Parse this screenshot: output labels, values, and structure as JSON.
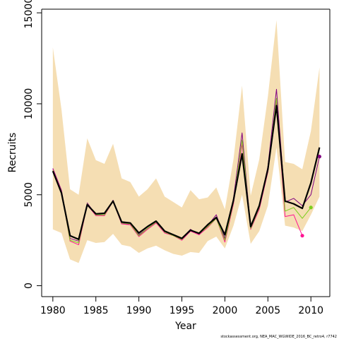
{
  "chart_data": {
    "type": "line",
    "title": "",
    "xlabel": "Year",
    "ylabel": "Recruits",
    "xlim": [
      1978.7,
      2012.2
    ],
    "ylim": [
      -600,
      15200
    ],
    "x_ticks": [
      1980,
      1985,
      1990,
      1995,
      2000,
      2005,
      2010
    ],
    "y_ticks": [
      0,
      5000,
      10000,
      15000
    ],
    "grid": false,
    "legend": "none",
    "band": {
      "color": "#f5deb3",
      "x": [
        1980,
        1981,
        1982,
        1983,
        1984,
        1985,
        1986,
        1987,
        1988,
        1989,
        1990,
        1991,
        1992,
        1993,
        1994,
        1995,
        1996,
        1997,
        1998,
        1999,
        2000,
        2001,
        2002,
        2003,
        2004,
        2005,
        2006,
        2007,
        2008,
        2009,
        2010,
        2011
      ],
      "upper": [
        13100,
        9700,
        5300,
        5000,
        8100,
        6900,
        6700,
        7800,
        5900,
        5700,
        4900,
        5300,
        5900,
        4900,
        4600,
        4300,
        5250,
        4750,
        4850,
        5400,
        4200,
        6950,
        11000,
        4950,
        6950,
        10400,
        14600,
        6800,
        6700,
        6400,
        8500,
        12000
      ],
      "lower": [
        3100,
        2900,
        1450,
        1250,
        2500,
        2350,
        2400,
        2850,
        2250,
        2150,
        1800,
        2050,
        2200,
        1950,
        1750,
        1650,
        1850,
        1800,
        2450,
        2700,
        2050,
        3300,
        5000,
        2300,
        3000,
        4400,
        7600,
        3300,
        3200,
        3000,
        3900,
        4900
      ]
    },
    "series": [
      {
        "color": "#000000",
        "width": 2.2,
        "x": [
          1980,
          1981,
          1982,
          1983,
          1984,
          1985,
          1986,
          1987,
          1988,
          1989,
          1990,
          1991,
          1992,
          1993,
          1994,
          1995,
          1996,
          1997,
          1998,
          1999,
          2000,
          2001,
          2002,
          2003,
          2004,
          2005,
          2006,
          2007,
          2008,
          2009,
          2010,
          2011
        ],
        "values": [
          6300,
          5100,
          2750,
          2550,
          4450,
          3950,
          3980,
          4650,
          3500,
          3450,
          2900,
          3250,
          3550,
          3000,
          2800,
          2600,
          3050,
          2880,
          3350,
          3750,
          2800,
          4700,
          7250,
          3250,
          4400,
          6400,
          9900,
          4650,
          4500,
          4250,
          5650,
          7600
        ]
      },
      {
        "color": "#800080",
        "width": 1,
        "x": [
          1980,
          1981,
          1982,
          1983,
          1984,
          1985,
          1986,
          1987,
          1988,
          1989,
          1990,
          1991,
          1992,
          1993,
          1994,
          1995,
          1996,
          1997,
          1998,
          1999,
          2000,
          2001,
          2002,
          2003,
          2004,
          2005,
          2006,
          2007,
          2008,
          2009,
          2010,
          2011
        ],
        "values": [
          6450,
          5250,
          2600,
          2450,
          4550,
          3900,
          3900,
          4700,
          3400,
          3400,
          2800,
          3150,
          3500,
          3000,
          2800,
          2600,
          3100,
          2800,
          3300,
          3900,
          2600,
          4800,
          8400,
          3150,
          4300,
          6550,
          10800,
          4600,
          4800,
          4400,
          5000,
          7100
        ]
      },
      {
        "color": "#ff1493",
        "width": 1,
        "x": [
          1980,
          1981,
          1982,
          1983,
          1984,
          1985,
          1986,
          1987,
          1988,
          1989,
          1990,
          1991,
          1992,
          1993,
          1994,
          1995,
          1996,
          1997,
          1998,
          1999,
          2000,
          2001,
          2002,
          2003,
          2004,
          2005,
          2006,
          2007,
          2008,
          2009
        ],
        "values": [
          6400,
          5200,
          2450,
          2250,
          4450,
          3850,
          3850,
          4650,
          3400,
          3350,
          2700,
          3100,
          3450,
          2900,
          2750,
          2500,
          3000,
          2800,
          3200,
          3700,
          2400,
          4500,
          7800,
          3100,
          4200,
          6250,
          10200,
          3800,
          3900,
          2750
        ]
      },
      {
        "color": "#7cce1c",
        "width": 1,
        "x": [
          1980,
          1981,
          1982,
          1983,
          1984,
          1985,
          1986,
          1987,
          1988,
          1989,
          1990,
          1991,
          1992,
          1993,
          1994,
          1995,
          1996,
          1997,
          1998,
          1999,
          2000,
          2001,
          2002,
          2003,
          2004,
          2005,
          2006,
          2007,
          2008,
          2009,
          2010
        ],
        "values": [
          6350,
          5150,
          2500,
          2350,
          4500,
          3900,
          3900,
          4650,
          3450,
          3400,
          2750,
          3150,
          3500,
          2950,
          2750,
          2550,
          3050,
          2850,
          3250,
          3700,
          2500,
          4600,
          8000,
          3150,
          4300,
          6350,
          10300,
          4100,
          4300,
          3700,
          4300
        ]
      }
    ],
    "endpoints": [
      {
        "color": "#ff1493",
        "x": 2009,
        "y": 2750
      },
      {
        "color": "#7cce1c",
        "x": 2010,
        "y": 4300
      },
      {
        "color": "#800080",
        "x": 2011,
        "y": 7100
      }
    ]
  },
  "credit": "stockassessment.org, NEA_MAC_WGWIDE_2016_BC_retro4, r7742"
}
